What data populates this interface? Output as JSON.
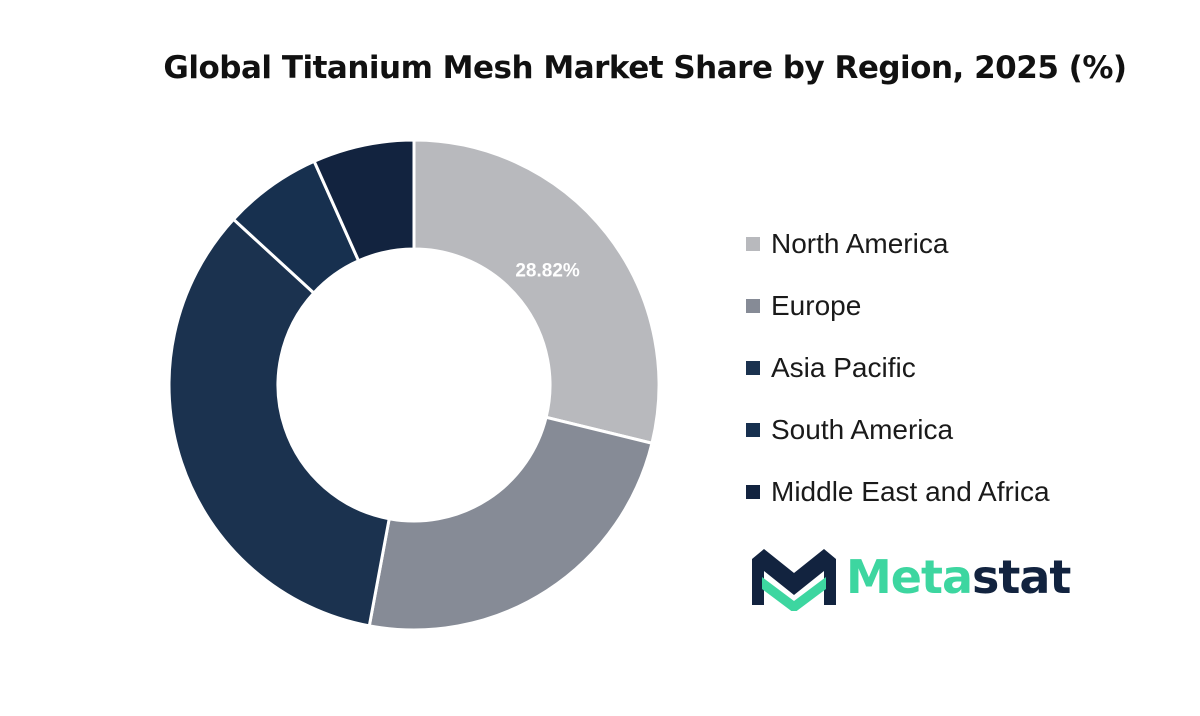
{
  "chart_data": {
    "type": "pie",
    "title": "Global Titanium Mesh Market Share by Region, 2025 (%)",
    "categories": [
      "North America",
      "Europe",
      "Asia Pacific",
      "South America",
      "Middle East and Africa"
    ],
    "values": [
      28.82,
      24.1,
      33.9,
      6.5,
      6.68
    ],
    "labels": [
      "28.82%",
      "",
      "",
      "",
      ""
    ],
    "colors": [
      "#b8b9bd",
      "#868b96",
      "#1b324f",
      "#17304f",
      "#12233f"
    ],
    "legend_position": "right",
    "donut": true
  },
  "brand": {
    "name_part1": "Meta",
    "name_part2": "stat",
    "colors": {
      "accent": "#3dd6a0",
      "dark": "#12233f"
    },
    "icon": "metastat-logo-icon"
  }
}
